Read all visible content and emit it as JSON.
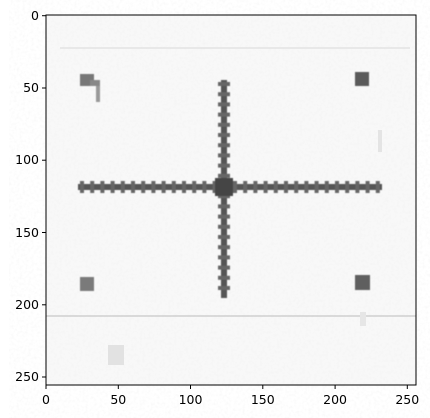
{
  "image": {
    "kind": "grayscale microscopy image of a cross-shaped structure with four corner alignment marks",
    "extent_x": [
      0,
      256
    ],
    "extent_y": [
      256,
      0
    ],
    "colors": {
      "background": "#f5f5f5",
      "structure": "#555555",
      "marks": "#666666"
    }
  },
  "axes": {
    "x_ticks": [
      0,
      50,
      100,
      150,
      200,
      250
    ],
    "y_ticks": [
      0,
      50,
      100,
      150,
      200,
      250
    ]
  },
  "x_tick_labels": [
    "0",
    "50",
    "100",
    "150",
    "200",
    "250"
  ],
  "y_tick_labels": [
    "0",
    "50",
    "100",
    "150",
    "200",
    "250"
  ]
}
